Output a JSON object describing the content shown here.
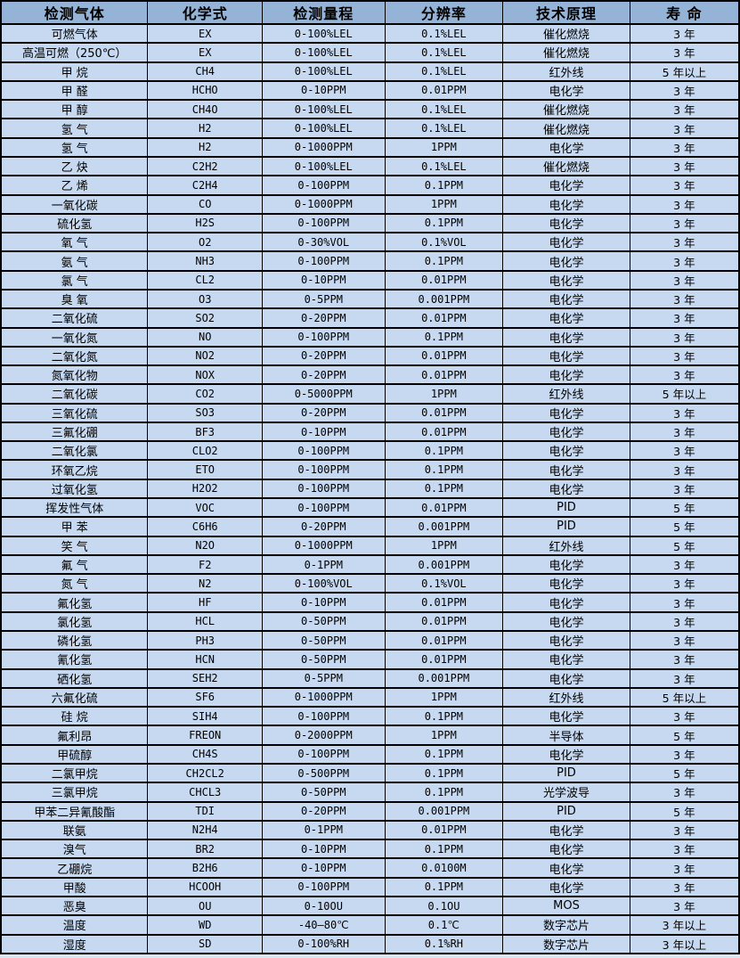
{
  "colors": {
    "header_bg": "#95B3D7",
    "row_bg": "#C6D9F1",
    "border": "#000000",
    "text": "#000000"
  },
  "table": {
    "title": "gas-detector-sensor-specifications",
    "columns": [
      {
        "key": "gas",
        "label": "检测气体"
      },
      {
        "key": "formula",
        "label": "化学式"
      },
      {
        "key": "range",
        "label": "检测量程"
      },
      {
        "key": "resolution",
        "label": "分辨率"
      },
      {
        "key": "principle",
        "label": "技术原理"
      },
      {
        "key": "lifespan",
        "label": "寿 命"
      }
    ],
    "rows": [
      [
        "可燃气体",
        "EX",
        "0-100%LEL",
        "0.1%LEL",
        "催化燃烧",
        "3 年"
      ],
      [
        "高温可燃（250℃）",
        "EX",
        "0-100%LEL",
        "0.1%LEL",
        "催化燃烧",
        "3 年"
      ],
      [
        "甲 烷",
        "CH4",
        "0-100%LEL",
        "0.1%LEL",
        "红外线",
        "5 年以上"
      ],
      [
        "甲 醛",
        "HCHO",
        "0-10PPM",
        "0.01PPM",
        "电化学",
        "3 年"
      ],
      [
        "甲 醇",
        "CH4O",
        "0-100%LEL",
        "0.1%LEL",
        "催化燃烧",
        "3 年"
      ],
      [
        "氢 气",
        "H2",
        "0-100%LEL",
        "0.1%LEL",
        "催化燃烧",
        "3 年"
      ],
      [
        "氢 气",
        "H2",
        "0-1000PPM",
        "1PPM",
        "电化学",
        "3 年"
      ],
      [
        "乙 炔",
        "C2H2",
        "0-100%LEL",
        "0.1%LEL",
        "催化燃烧",
        "3 年"
      ],
      [
        "乙 烯",
        "C2H4",
        "0-100PPM",
        "0.1PPM",
        "电化学",
        "3 年"
      ],
      [
        "一氧化碳",
        "CO",
        "0-1000PPM",
        "1PPM",
        "电化学",
        "3 年"
      ],
      [
        "硫化氢",
        "H2S",
        "0-100PPM",
        "0.1PPM",
        "电化学",
        "3 年"
      ],
      [
        "氧 气",
        "O2",
        "0-30%VOL",
        "0.1%VOL",
        "电化学",
        "3 年"
      ],
      [
        "氨 气",
        "NH3",
        "0-100PPM",
        "0.1PPM",
        "电化学",
        "3 年"
      ],
      [
        "氯 气",
        "CL2",
        "0-10PPM",
        "0.01PPM",
        "电化学",
        "3 年"
      ],
      [
        "臭 氧",
        "O3",
        "0-5PPM",
        "0.001PPM",
        "电化学",
        "3 年"
      ],
      [
        "二氧化硫",
        "SO2",
        "0-20PPM",
        "0.01PPM",
        "电化学",
        "3 年"
      ],
      [
        "一氧化氮",
        "NO",
        "0-100PPM",
        "0.1PPM",
        "电化学",
        "3 年"
      ],
      [
        "二氧化氮",
        "NO2",
        "0-20PPM",
        "0.01PPM",
        "电化学",
        "3 年"
      ],
      [
        "氮氧化物",
        "NOX",
        "0-20PPM",
        "0.01PPM",
        "电化学",
        "3 年"
      ],
      [
        "二氧化碳",
        "CO2",
        "0-5000PPM",
        "1PPM",
        "红外线",
        "5 年以上"
      ],
      [
        "三氧化硫",
        "SO3",
        "0-20PPM",
        "0.01PPM",
        "电化学",
        "3 年"
      ],
      [
        "三氟化硼",
        "BF3",
        "0-10PPM",
        "0.01PPM",
        "电化学",
        "3 年"
      ],
      [
        "二氧化氯",
        "CLO2",
        "0-100PPM",
        "0.1PPM",
        "电化学",
        "3 年"
      ],
      [
        "环氧乙烷",
        "ETO",
        "0-100PPM",
        "0.1PPM",
        "电化学",
        "3 年"
      ],
      [
        "过氧化氢",
        "H2O2",
        "0-100PPM",
        "0.1PPM",
        "电化学",
        "3 年"
      ],
      [
        "挥发性气体",
        "VOC",
        "0-100PPM",
        "0.01PPM",
        "PID",
        "5 年"
      ],
      [
        "甲 苯",
        "C6H6",
        "0-20PPM",
        "0.001PPM",
        "PID",
        "5 年"
      ],
      [
        "笑 气",
        "N2O",
        "0-1000PPM",
        "1PPM",
        "红外线",
        "5 年"
      ],
      [
        "氟 气",
        "F2",
        "0-1PPM",
        "0.001PPM",
        "电化学",
        "3 年"
      ],
      [
        "氮 气",
        "N2",
        "0-100%VOL",
        "0.1%VOL",
        "电化学",
        "3 年"
      ],
      [
        "氟化氢",
        "HF",
        "0-10PPM",
        "0.01PPM",
        "电化学",
        "3 年"
      ],
      [
        "氯化氢",
        "HCL",
        "0-50PPM",
        "0.01PPM",
        "电化学",
        "3 年"
      ],
      [
        "磷化氢",
        "PH3",
        "0-50PPM",
        "0.01PPM",
        "电化学",
        "3 年"
      ],
      [
        "氰化氢",
        "HCN",
        "0-50PPM",
        "0.01PPM",
        "电化学",
        "3 年"
      ],
      [
        "硒化氢",
        "SEH2",
        "0-5PPM",
        "0.001PPM",
        "电化学",
        "3 年"
      ],
      [
        "六氟化硫",
        "SF6",
        "0-1000PPM",
        "1PPM",
        "红外线",
        "5 年以上"
      ],
      [
        "硅 烷",
        "SIH4",
        "0-100PPM",
        "0.1PPM",
        "电化学",
        "3 年"
      ],
      [
        "氟利昂",
        "FREON",
        "0-2000PPM",
        "1PPM",
        "半导体",
        "5 年"
      ],
      [
        "甲硫醇",
        "CH4S",
        "0-100PPM",
        "0.1PPM",
        "电化学",
        "3 年"
      ],
      [
        "二氯甲烷",
        "CH2CL2",
        "0-500PPM",
        "0.1PPM",
        "PID",
        "5 年"
      ],
      [
        "三氯甲烷",
        "CHCL3",
        "0-50PPM",
        "0.1PPM",
        "光学波导",
        "3 年"
      ],
      [
        "甲苯二异氰酸酯",
        "TDI",
        "0-20PPM",
        "0.001PPM",
        "PID",
        "5 年"
      ],
      [
        "联氨",
        "N2H4",
        "0-1PPM",
        "0.01PPM",
        "电化学",
        "3 年"
      ],
      [
        "溴气",
        "BR2",
        "0-10PPM",
        "0.1PPM",
        "电化学",
        "3 年"
      ],
      [
        "乙硼烷",
        "B2H6",
        "0-10PPM",
        "0.0100M",
        "电化学",
        "3 年"
      ],
      [
        "甲酸",
        "HCOOH",
        "0-100PPM",
        "0.1PPM",
        "电化学",
        "3 年"
      ],
      [
        "恶臭",
        "OU",
        "0-10OU",
        "0.1OU",
        "MOS",
        "3 年"
      ],
      [
        "温度",
        "WD",
        "-40—80℃",
        "0.1℃",
        "数字芯片",
        "3 年以上"
      ],
      [
        "湿度",
        "SD",
        "0-100%RH",
        "0.1%RH",
        "数字芯片",
        "3 年以上"
      ]
    ]
  }
}
